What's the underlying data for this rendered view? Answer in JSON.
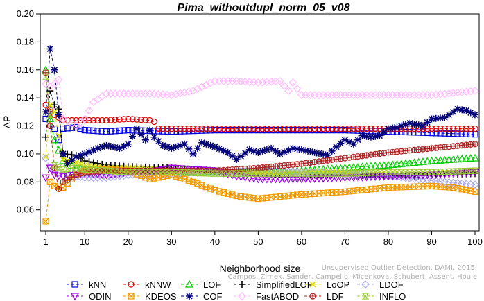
{
  "chart_data": {
    "type": "line",
    "title": "Pima_withoutdupl_norm_05_v08",
    "xlabel": "Neighborhood size",
    "ylabel": "AP",
    "xlim": [
      1,
      100
    ],
    "ylim": [
      0.045,
      0.2
    ],
    "xticks": [
      1,
      10,
      20,
      30,
      40,
      50,
      60,
      70,
      80,
      90,
      100
    ],
    "yticks": [
      0.06,
      0.08,
      0.1,
      0.12,
      0.14,
      0.16,
      0.18,
      0.2
    ],
    "ytick_labels": [
      "0.06",
      "0.08",
      "0.10",
      "0.12",
      "0.14",
      "0.16",
      "0.18",
      "0.20"
    ],
    "grid": false,
    "legend_position": "bottom",
    "watermark": [
      "Campos, Zimek, Sander, Campello, Micenkova, Schubert, Assent, Houle",
      "Unsupervised Outlier Detection. DAMI, 2015."
    ],
    "series": [
      {
        "name": "kNN",
        "color": "#0000dd",
        "marker": "square",
        "points": [
          [
            1,
            0.125
          ],
          [
            2,
            0.131
          ],
          [
            3,
            0.118
          ],
          [
            4,
            0.11
          ],
          [
            5,
            0.118
          ],
          [
            8,
            0.119
          ],
          [
            10,
            0.117
          ],
          [
            15,
            0.116
          ],
          [
            20,
            0.117
          ],
          [
            30,
            0.116
          ],
          [
            40,
            0.117
          ],
          [
            50,
            0.117
          ],
          [
            60,
            0.117
          ],
          [
            70,
            0.117
          ],
          [
            80,
            0.116
          ],
          [
            90,
            0.115
          ],
          [
            100,
            0.114
          ]
        ]
      },
      {
        "name": "kNNW",
        "color": "#dd0000",
        "marker": "circle",
        "points": [
          [
            1,
            0.135
          ],
          [
            2,
            0.132
          ],
          [
            3,
            0.128
          ],
          [
            5,
            0.124
          ],
          [
            8,
            0.124
          ],
          [
            10,
            0.124
          ],
          [
            15,
            0.124
          ],
          [
            20,
            0.125
          ],
          [
            25,
            0.124
          ],
          [
            26,
            0.123
          ]
        ]
      },
      {
        "name": "kNNW",
        "color": "#dd0000",
        "marker": "circle",
        "points": [
          [
            27,
            0.118
          ],
          [
            30,
            0.118
          ],
          [
            40,
            0.118
          ],
          [
            50,
            0.118
          ],
          [
            60,
            0.118
          ],
          [
            70,
            0.118
          ],
          [
            80,
            0.118
          ],
          [
            90,
            0.118
          ],
          [
            100,
            0.118
          ]
        ]
      },
      {
        "name": "LOF",
        "color": "#00cc00",
        "marker": "triangle",
        "points": [
          [
            1,
            0.16
          ],
          [
            2,
            0.125
          ],
          [
            3,
            0.11
          ],
          [
            5,
            0.095
          ],
          [
            8,
            0.09
          ],
          [
            10,
            0.089
          ],
          [
            15,
            0.088
          ],
          [
            20,
            0.088
          ],
          [
            30,
            0.087
          ],
          [
            40,
            0.087
          ],
          [
            50,
            0.087
          ],
          [
            60,
            0.088
          ],
          [
            70,
            0.09
          ],
          [
            80,
            0.092
          ],
          [
            90,
            0.095
          ],
          [
            100,
            0.097
          ]
        ]
      },
      {
        "name": "SimplifiedLOF",
        "color": "#000000",
        "marker": "plus",
        "points": [
          [
            1,
            0.112
          ],
          [
            2,
            0.145
          ],
          [
            3,
            0.135
          ],
          [
            4,
            0.132
          ],
          [
            5,
            0.1
          ],
          [
            8,
            0.099
          ],
          [
            10,
            0.095
          ],
          [
            15,
            0.092
          ],
          [
            20,
            0.091
          ],
          [
            30,
            0.09
          ],
          [
            40,
            0.088
          ],
          [
            50,
            0.086
          ],
          [
            60,
            0.085
          ],
          [
            70,
            0.085
          ],
          [
            80,
            0.084
          ],
          [
            90,
            0.085
          ],
          [
            100,
            0.086
          ]
        ]
      },
      {
        "name": "LoOP",
        "color": "#dddd00",
        "marker": "x",
        "points": [
          [
            1,
            0.098
          ],
          [
            2,
            0.135
          ],
          [
            3,
            0.13
          ],
          [
            5,
            0.096
          ],
          [
            8,
            0.094
          ],
          [
            10,
            0.092
          ],
          [
            15,
            0.09
          ],
          [
            20,
            0.09
          ],
          [
            30,
            0.089
          ],
          [
            40,
            0.088
          ],
          [
            50,
            0.087
          ],
          [
            60,
            0.087
          ],
          [
            70,
            0.087
          ],
          [
            80,
            0.087
          ],
          [
            90,
            0.087
          ],
          [
            100,
            0.088
          ]
        ]
      },
      {
        "name": "LDOF",
        "color": "#aaaaee",
        "marker": "diamond",
        "points": [
          [
            1,
            0.097
          ],
          [
            2,
            0.09
          ],
          [
            3,
            0.088
          ],
          [
            5,
            0.085
          ],
          [
            10,
            0.083
          ],
          [
            15,
            0.083
          ],
          [
            20,
            0.085
          ],
          [
            30,
            0.086
          ],
          [
            40,
            0.087
          ],
          [
            50,
            0.088
          ],
          [
            60,
            0.087
          ],
          [
            70,
            0.086
          ],
          [
            80,
            0.084
          ],
          [
            90,
            0.081
          ],
          [
            100,
            0.078
          ]
        ]
      },
      {
        "name": "ODIN",
        "color": "#9900dd",
        "marker": "triangle-down",
        "points": [
          [
            1,
            0.083
          ],
          [
            2,
            0.09
          ],
          [
            3,
            0.085
          ],
          [
            5,
            0.084
          ],
          [
            10,
            0.086
          ],
          [
            15,
            0.085
          ],
          [
            20,
            0.087
          ],
          [
            25,
            0.087
          ],
          [
            30,
            0.09
          ],
          [
            40,
            0.088
          ],
          [
            45,
            0.084
          ],
          [
            50,
            0.082
          ],
          [
            60,
            0.082
          ],
          [
            70,
            0.083
          ],
          [
            80,
            0.084
          ],
          [
            90,
            0.085
          ],
          [
            100,
            0.087
          ]
        ]
      },
      {
        "name": "KDEOS",
        "color": "#ee9900",
        "marker": "square-x",
        "points": [
          [
            1,
            0.052
          ],
          [
            2,
            0.08
          ],
          [
            3,
            0.077
          ],
          [
            5,
            0.076
          ],
          [
            8,
            0.085
          ],
          [
            10,
            0.088
          ],
          [
            15,
            0.089
          ],
          [
            20,
            0.088
          ],
          [
            25,
            0.082
          ],
          [
            30,
            0.085
          ],
          [
            35,
            0.08
          ],
          [
            40,
            0.074
          ],
          [
            45,
            0.07
          ],
          [
            50,
            0.068
          ],
          [
            60,
            0.071
          ],
          [
            70,
            0.073
          ],
          [
            80,
            0.076
          ],
          [
            90,
            0.077
          ],
          [
            95,
            0.076
          ],
          [
            100,
            0.073
          ]
        ]
      },
      {
        "name": "COF",
        "color": "#000077",
        "marker": "star",
        "points": [
          [
            1,
            0.13
          ],
          [
            2,
            0.175
          ],
          [
            3,
            0.16
          ],
          [
            4,
            0.128
          ],
          [
            5,
            0.1
          ],
          [
            6,
            0.093
          ],
          [
            8,
            0.098
          ],
          [
            10,
            0.1
          ],
          [
            13,
            0.104
          ],
          [
            15,
            0.106
          ],
          [
            18,
            0.104
          ],
          [
            20,
            0.107
          ],
          [
            22,
            0.118
          ],
          [
            24,
            0.11
          ],
          [
            25,
            0.117
          ],
          [
            26,
            0.112
          ],
          [
            28,
            0.106
          ],
          [
            30,
            0.104
          ],
          [
            33,
            0.107
          ],
          [
            35,
            0.1
          ],
          [
            37,
            0.108
          ],
          [
            40,
            0.105
          ],
          [
            43,
            0.101
          ],
          [
            45,
            0.096
          ],
          [
            48,
            0.103
          ],
          [
            50,
            0.101
          ],
          [
            53,
            0.104
          ],
          [
            55,
            0.1
          ],
          [
            58,
            0.104
          ],
          [
            60,
            0.103
          ],
          [
            63,
            0.101
          ],
          [
            66,
            0.099
          ],
          [
            68,
            0.105
          ],
          [
            70,
            0.11
          ],
          [
            72,
            0.107
          ],
          [
            74,
            0.113
          ],
          [
            76,
            0.112
          ],
          [
            78,
            0.113
          ],
          [
            80,
            0.118
          ],
          [
            82,
            0.119
          ],
          [
            85,
            0.122
          ],
          [
            88,
            0.12
          ],
          [
            90,
            0.125
          ],
          [
            93,
            0.126
          ],
          [
            96,
            0.132
          ],
          [
            98,
            0.131
          ],
          [
            100,
            0.128
          ]
        ]
      },
      {
        "name": "FastABOD",
        "color": "#ffbbff",
        "marker": "diamond",
        "points": [
          [
            1,
            0.15
          ],
          [
            2,
            0.148
          ],
          [
            3,
            0.15
          ],
          [
            4,
            0.153
          ],
          [
            5,
            0.125
          ],
          [
            8,
            0.12
          ],
          [
            10,
            0.125
          ],
          [
            12,
            0.137
          ],
          [
            15,
            0.143
          ],
          [
            20,
            0.143
          ],
          [
            25,
            0.143
          ],
          [
            30,
            0.142
          ],
          [
            35,
            0.145
          ],
          [
            40,
            0.152
          ],
          [
            45,
            0.152
          ],
          [
            50,
            0.151
          ],
          [
            55,
            0.152
          ],
          [
            57,
            0.145
          ],
          [
            58,
            0.151
          ],
          [
            60,
            0.142
          ],
          [
            70,
            0.142
          ],
          [
            80,
            0.142
          ],
          [
            90,
            0.142
          ],
          [
            100,
            0.145
          ]
        ]
      },
      {
        "name": "LDF",
        "color": "#aa2222",
        "marker": "circle-plus",
        "points": [
          [
            1,
            0.158
          ],
          [
            2,
            0.12
          ],
          [
            3,
            0.09
          ],
          [
            4,
            0.075
          ],
          [
            5,
            0.08
          ],
          [
            8,
            0.085
          ],
          [
            10,
            0.087
          ],
          [
            15,
            0.088
          ],
          [
            20,
            0.088
          ],
          [
            30,
            0.088
          ],
          [
            40,
            0.088
          ],
          [
            50,
            0.09
          ],
          [
            60,
            0.093
          ],
          [
            70,
            0.097
          ],
          [
            80,
            0.101
          ],
          [
            90,
            0.104
          ],
          [
            100,
            0.107
          ]
        ]
      },
      {
        "name": "INFLO",
        "color": "#99cc33",
        "marker": "hourglass",
        "points": [
          [
            1,
            0.155
          ],
          [
            2,
            0.128
          ],
          [
            3,
            0.092
          ],
          [
            5,
            0.089
          ],
          [
            8,
            0.09
          ],
          [
            10,
            0.089
          ],
          [
            15,
            0.088
          ],
          [
            20,
            0.087
          ],
          [
            30,
            0.087
          ],
          [
            40,
            0.086
          ],
          [
            50,
            0.086
          ],
          [
            60,
            0.086
          ],
          [
            70,
            0.086
          ],
          [
            80,
            0.087
          ],
          [
            90,
            0.087
          ],
          [
            100,
            0.088
          ]
        ]
      }
    ],
    "legend": [
      [
        "kNN",
        "kNNW",
        "LOF",
        "SimplifiedLOF",
        "LoOP",
        "LDOF"
      ],
      [
        "ODIN",
        "KDEOS",
        "COF",
        "FastABOD",
        "LDF",
        "INFLO"
      ]
    ]
  }
}
